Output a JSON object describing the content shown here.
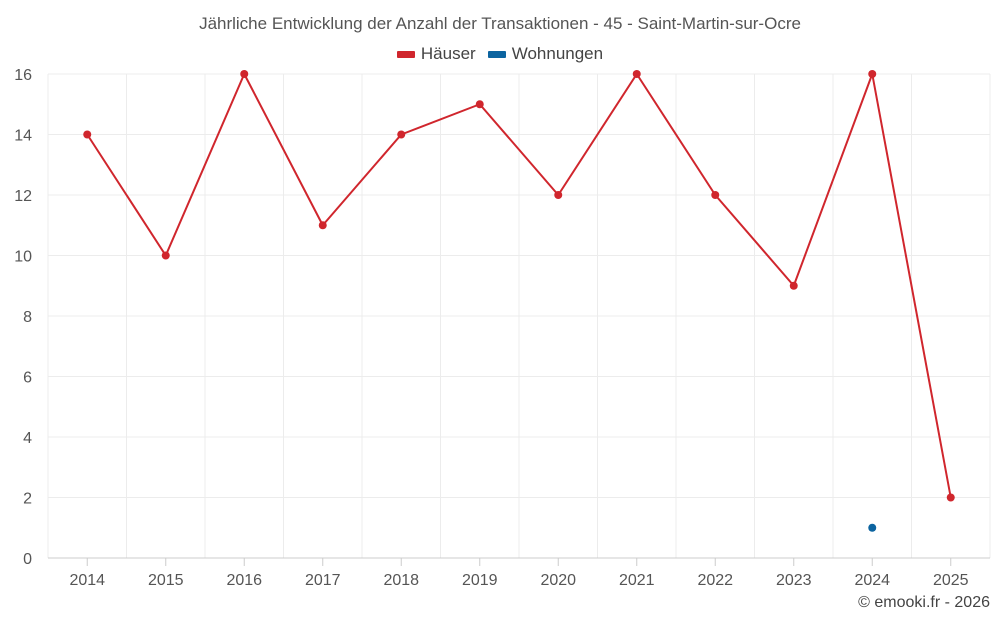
{
  "chart_data": {
    "type": "line",
    "title": "Jährliche Entwicklung der Anzahl der Transaktionen - 45 - Saint-Martin-sur-Ocre",
    "categories": [
      "2014",
      "2015",
      "2016",
      "2017",
      "2018",
      "2019",
      "2020",
      "2021",
      "2022",
      "2023",
      "2024",
      "2025"
    ],
    "series": [
      {
        "name": "Häuser",
        "color": "#d0262d",
        "values": [
          14,
          10,
          16,
          11,
          14,
          15,
          12,
          16,
          12,
          9,
          16,
          2
        ]
      },
      {
        "name": "Wohnungen",
        "color": "#0c64a0",
        "values": [
          null,
          null,
          null,
          null,
          null,
          null,
          null,
          null,
          null,
          null,
          1,
          null
        ]
      }
    ],
    "ylim": [
      0,
      16
    ],
    "yticks": [
      0,
      2,
      4,
      6,
      8,
      10,
      12,
      14,
      16
    ],
    "xlabel": "",
    "ylabel": "",
    "grid": true,
    "legend": "top-center"
  },
  "credit": "© emooki.fr - 2026"
}
